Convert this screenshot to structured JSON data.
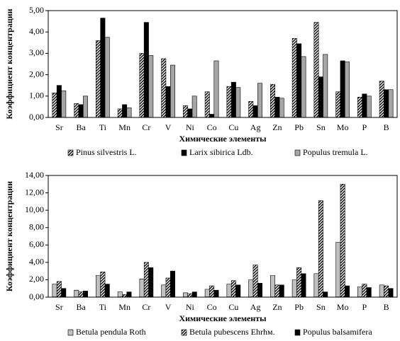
{
  "chart_data": [
    {
      "type": "bar",
      "x_label": "Химические элементы",
      "y_label": "Коэффициент концентрации",
      "categories": [
        "Sr",
        "Ba",
        "Ti",
        "Mn",
        "Cr",
        "V",
        "Ni",
        "Co",
        "Cu",
        "Ag",
        "Zn",
        "Pb",
        "Sn",
        "Mo",
        "P",
        "B"
      ],
      "series": [
        {
          "name": "Pinus silvestris L.",
          "color": "#000000",
          "pattern": "diagonal",
          "values": [
            1.15,
            0.65,
            3.6,
            0.4,
            3.0,
            2.75,
            0.55,
            1.2,
            1.45,
            0.75,
            1.55,
            3.7,
            4.45,
            1.2,
            0.95,
            1.7
          ]
        },
        {
          "name": "Larix sibirica Ldb.",
          "color": "#000000",
          "values": [
            1.5,
            0.6,
            4.65,
            0.6,
            4.45,
            1.45,
            0.4,
            0.15,
            1.65,
            0.55,
            0.95,
            3.45,
            1.9,
            2.65,
            1.1,
            1.3
          ]
        },
        {
          "name": "Populus tremula L.",
          "color": "#a6a6a6",
          "values": [
            1.25,
            1.0,
            3.75,
            0.45,
            2.9,
            2.45,
            1.0,
            2.65,
            1.4,
            1.6,
            0.9,
            2.85,
            2.95,
            2.6,
            1.0,
            1.3
          ]
        }
      ],
      "ylim": [
        0,
        5
      ],
      "yticks": [
        {
          "value": 0,
          "label": "0,00"
        },
        {
          "value": 1,
          "label": "1,00"
        },
        {
          "value": 2,
          "label": "2,00"
        },
        {
          "value": 3,
          "label": "3,00"
        },
        {
          "value": 4,
          "label": "4,00"
        },
        {
          "value": 5,
          "label": "5,00"
        }
      ],
      "grid": false,
      "legend": "bottom"
    },
    {
      "type": "bar",
      "x_label": "Химические элементы",
      "y_label": "Коэффициент концентрации",
      "categories": [
        "Sr",
        "Ba",
        "Ti",
        "Mn",
        "Cr",
        "V",
        "Ni",
        "Co",
        "Cu",
        "Ag",
        "Zn",
        "Pb",
        "Sn",
        "Mo",
        "P",
        "B"
      ],
      "series": [
        {
          "name": "Betula pendula Roth",
          "color": "#808080",
          "pattern": "horizontal",
          "values": [
            1.5,
            0.8,
            2.5,
            0.6,
            2.1,
            1.4,
            0.5,
            0.9,
            1.5,
            2.0,
            2.5,
            2.0,
            2.7,
            6.3,
            1.2,
            1.4
          ]
        },
        {
          "name": "Betula pubescens Ehrhм.",
          "color": "#000000",
          "pattern": "diagonal",
          "values": [
            1.8,
            0.6,
            2.9,
            0.3,
            4.0,
            2.2,
            0.4,
            1.3,
            1.9,
            3.7,
            1.4,
            3.4,
            11.1,
            13.0,
            1.5,
            1.3
          ]
        },
        {
          "name": "Populus balsamifera",
          "color": "#000000",
          "values": [
            1.0,
            0.7,
            1.5,
            0.6,
            3.4,
            3.0,
            0.6,
            0.8,
            1.4,
            1.6,
            1.4,
            2.7,
            0.6,
            1.3,
            1.1,
            1.0
          ]
        }
      ],
      "ylim": [
        0,
        14
      ],
      "yticks": [
        {
          "value": 0,
          "label": "0,00"
        },
        {
          "value": 2,
          "label": "2,00"
        },
        {
          "value": 4,
          "label": "4,00"
        },
        {
          "value": 6,
          "label": "6,00"
        },
        {
          "value": 8,
          "label": "8,00"
        },
        {
          "value": 10,
          "label": "10,00"
        },
        {
          "value": 12,
          "label": "12,00"
        },
        {
          "value": 14,
          "label": "14,00"
        }
      ],
      "grid": false,
      "legend": "bottom"
    }
  ]
}
